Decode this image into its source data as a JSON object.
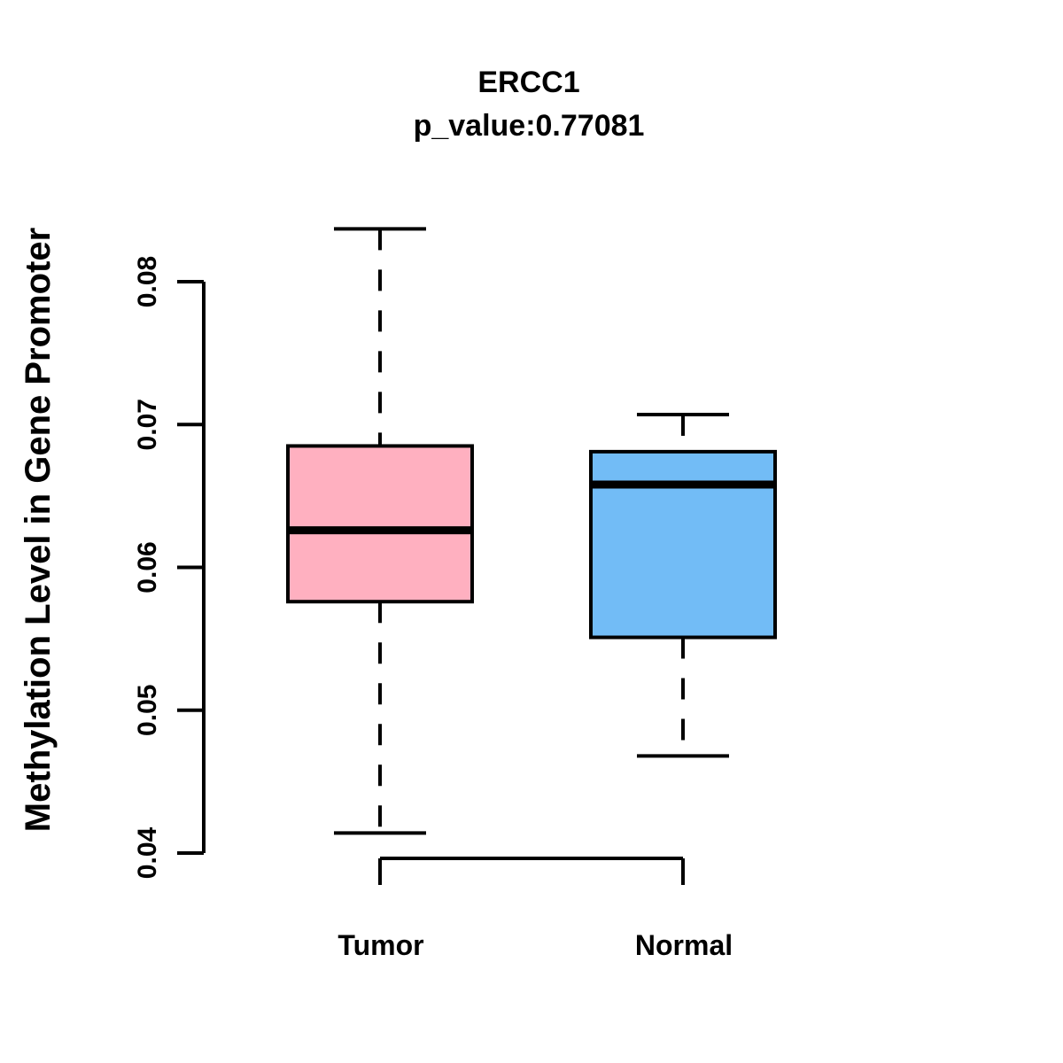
{
  "chart_data": {
    "type": "boxplot",
    "title": "ERCC1",
    "subtitle": "p_value:0.77081",
    "ylabel": "Methylation Level in Gene Promoter",
    "xlabel": "",
    "categories": [
      "Tumor",
      "Normal"
    ],
    "ylim": [
      0.04,
      0.08
    ],
    "yticks": [
      0.04,
      0.05,
      0.06,
      0.07,
      0.08
    ],
    "ytick_labels": [
      "0.04",
      "0.05",
      "0.06",
      "0.07",
      "0.08"
    ],
    "grid": false,
    "legend": "none",
    "colors": {
      "tumor_fill": "#FFB0C0",
      "normal_fill": "#72BCF6",
      "line": "#000000",
      "background": "#FFFFFF"
    },
    "series": [
      {
        "name": "Tumor",
        "fill": "#FFB0C0",
        "whisker_low": 0.0414,
        "q1": 0.0576,
        "median": 0.0626,
        "q3": 0.0685,
        "whisker_high": 0.0837,
        "outliers": []
      },
      {
        "name": "Normal",
        "fill": "#72BCF6",
        "whisker_low": 0.0468,
        "q1": 0.0551,
        "median": 0.0658,
        "q3": 0.0681,
        "whisker_high": 0.0707,
        "outliers": []
      }
    ]
  }
}
